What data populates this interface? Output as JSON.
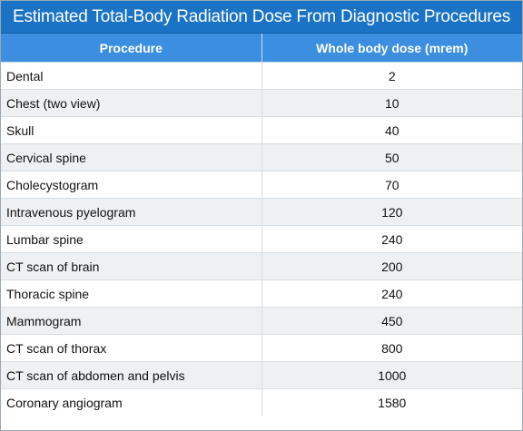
{
  "title": "Estimated Total-Body Radiation Dose From Diagnostic Procedures",
  "table": {
    "headers": [
      "Procedure",
      "Whole body dose (mrem)"
    ],
    "rows": [
      [
        "Dental",
        "2"
      ],
      [
        "Chest (two view)",
        "10"
      ],
      [
        "Skull",
        "40"
      ],
      [
        "Cervical spine",
        "50"
      ],
      [
        "Cholecystogram",
        "70"
      ],
      [
        "Intravenous pyelogram",
        "120"
      ],
      [
        "Lumbar spine",
        "240"
      ],
      [
        "CT scan of brain",
        "200"
      ],
      [
        "Thoracic spine",
        "240"
      ],
      [
        "Mammogram",
        "450"
      ],
      [
        "CT scan of thorax",
        "800"
      ],
      [
        "CT scan of abdomen and pelvis",
        "1000"
      ],
      [
        "Coronary angiogram",
        "1580"
      ]
    ]
  },
  "colors": {
    "title_bg": "#1a73c4",
    "header_bg": "#3b8ee0",
    "stripe_bg": "#eef0f2"
  }
}
